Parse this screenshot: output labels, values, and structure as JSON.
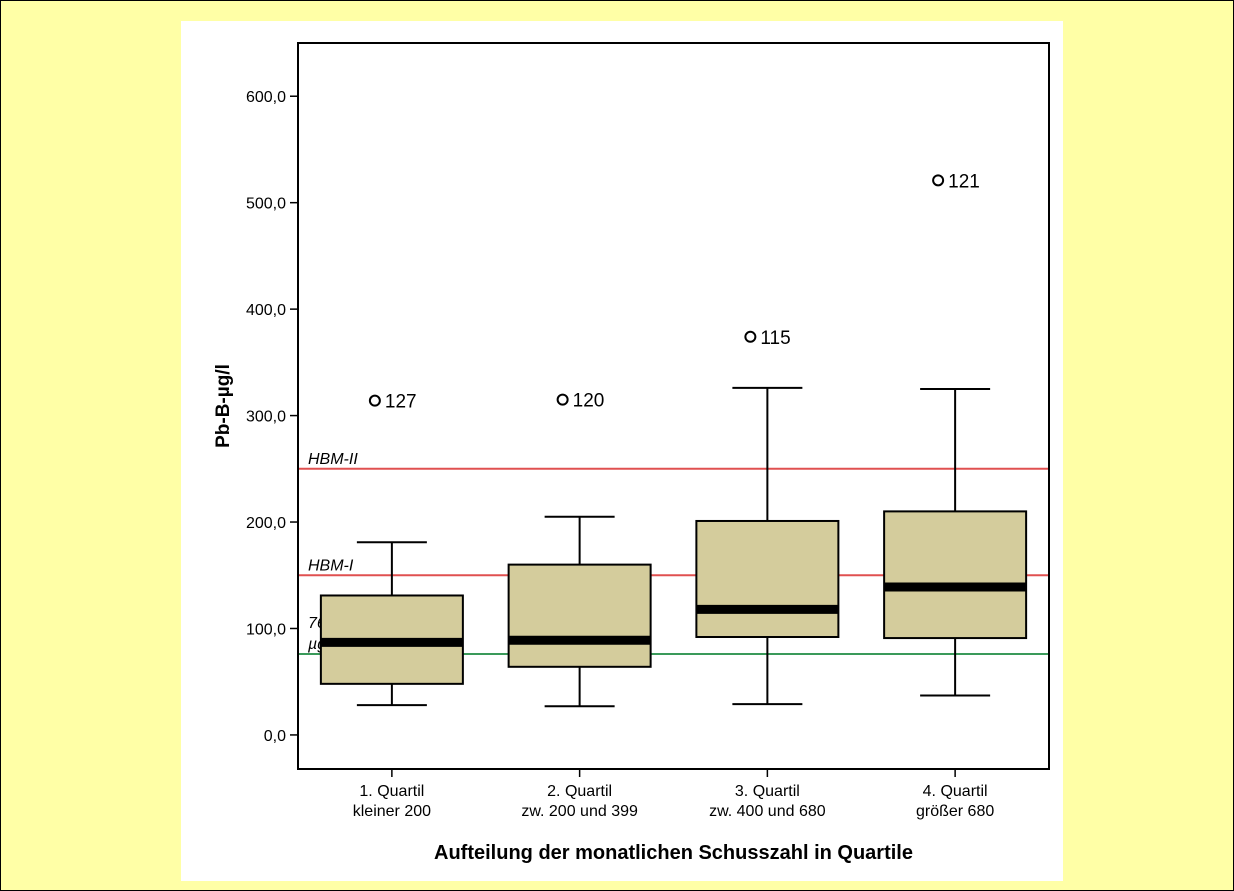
{
  "chart_data": {
    "type": "boxplot",
    "xlabel": "Aufteilung der monatlichen Schusszahl in Quartile",
    "ylabel": "Pb-B-µg/l",
    "ylim": [
      -32,
      650
    ],
    "yticks": [
      0,
      100,
      200,
      300,
      400,
      500,
      600
    ],
    "ytick_labels": [
      "0,0",
      "100,0",
      "200,0",
      "300,0",
      "400,0",
      "500,0",
      "600,0"
    ],
    "grid": false,
    "categories": [
      [
        "1. Quartil",
        "kleiner 200"
      ],
      [
        "2. Quartil",
        "zw. 200 und 399"
      ],
      [
        "3. Quartil",
        "zw. 400 und 680"
      ],
      [
        "4. Quartil",
        "größer 680"
      ]
    ],
    "boxes": [
      {
        "whisker_low": 28,
        "q1": 48,
        "median": 87,
        "q3": 131,
        "whisker_high": 181,
        "outliers": [
          {
            "value": 314,
            "label": "127"
          }
        ]
      },
      {
        "whisker_low": 27,
        "q1": 64,
        "median": 89,
        "q3": 160,
        "whisker_high": 205,
        "outliers": [
          {
            "value": 315,
            "label": "120"
          }
        ]
      },
      {
        "whisker_low": 29,
        "q1": 92,
        "median": 118,
        "q3": 201,
        "whisker_high": 326,
        "outliers": [
          {
            "value": 374,
            "label": "115"
          }
        ]
      },
      {
        "whisker_low": 37,
        "q1": 91,
        "median": 139,
        "q3": 210,
        "whisker_high": 325,
        "outliers": [
          {
            "value": 521,
            "label": "121"
          }
        ]
      }
    ],
    "reference_lines": [
      {
        "value": 250,
        "label": "HBM-II",
        "color": "#e05050"
      },
      {
        "value": 150,
        "label": "HBM-I",
        "color": "#e05050"
      },
      {
        "value": 76,
        "label": [
          "76",
          "µg/l"
        ],
        "color": "#3a9a5a"
      }
    ],
    "box_color": "#d4cc9c"
  }
}
